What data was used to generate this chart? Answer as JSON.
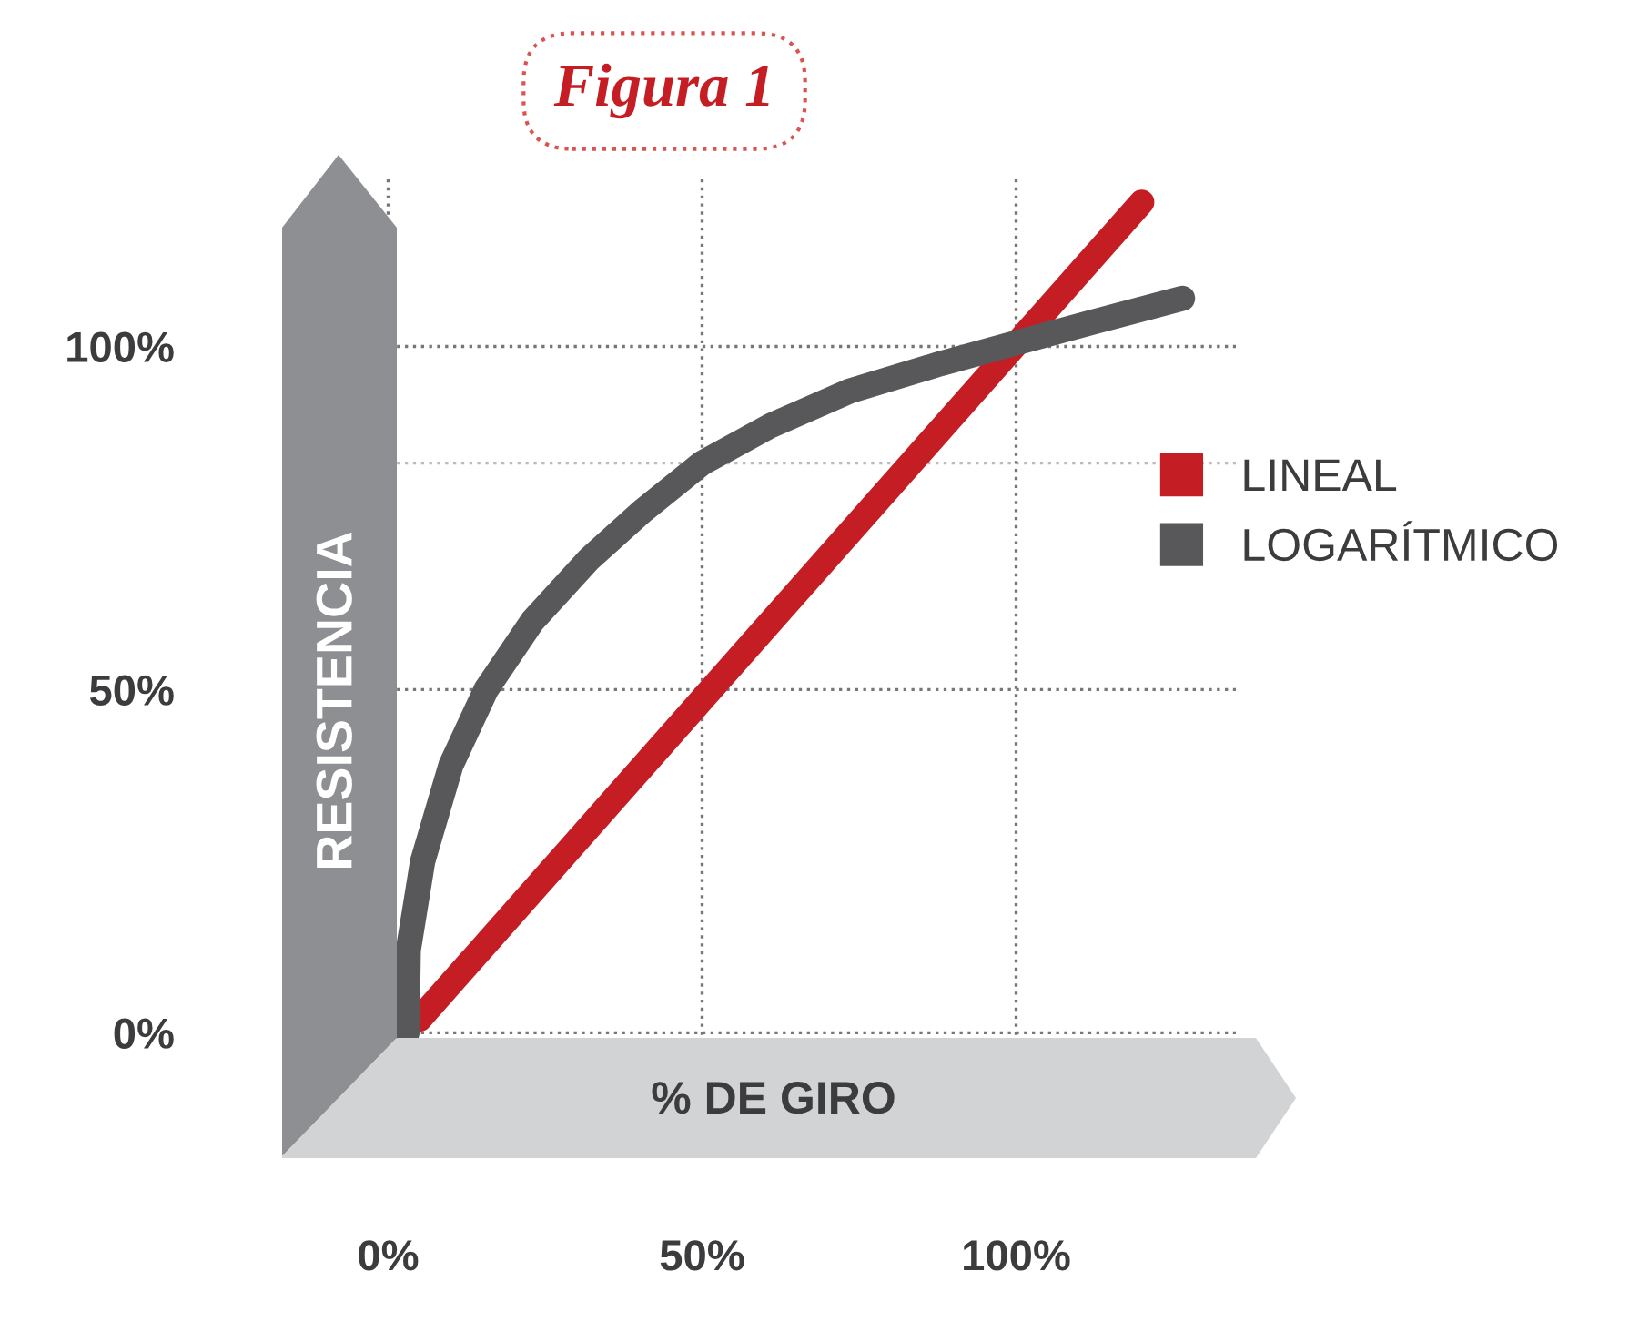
{
  "chart_data": {
    "type": "line",
    "title": "Figura 1",
    "xlabel": "% DE GIRO",
    "ylabel": "RESISTENCIA",
    "series": [
      {
        "name": "LINEAL",
        "color": "#c41e24",
        "x": [
          5,
          120
        ],
        "values": [
          2,
          121
        ]
      },
      {
        "name": "LOGARÍTMICO",
        "color": "#58585a",
        "x": [
          3,
          3.2,
          5.5,
          10,
          15.6,
          23,
          32,
          40.5,
          50,
          61,
          73.5,
          88,
          100,
          112,
          126.5
        ],
        "values": [
          0,
          12,
          25,
          39,
          50,
          60,
          69,
          76,
          83,
          88.5,
          93.5,
          97.5,
          100.5,
          103.5,
          107
        ]
      }
    ],
    "xlim": [
      -5,
      135
    ],
    "ylim": [
      -5,
      125
    ],
    "xticks": [
      {
        "value": 0,
        "label": "0%"
      },
      {
        "value": 50,
        "label": "50%"
      },
      {
        "value": 100,
        "label": "100%"
      }
    ],
    "yticks": [
      {
        "value": 0,
        "label": "0%"
      },
      {
        "value": 50,
        "label": "50%"
      },
      {
        "value": 100,
        "label": "100%"
      }
    ],
    "ref_lines": [
      {
        "axis": "y",
        "value": 83,
        "label": null,
        "line_style": "dotted"
      }
    ],
    "grid": true,
    "legend": "right",
    "line_style": "solid"
  }
}
